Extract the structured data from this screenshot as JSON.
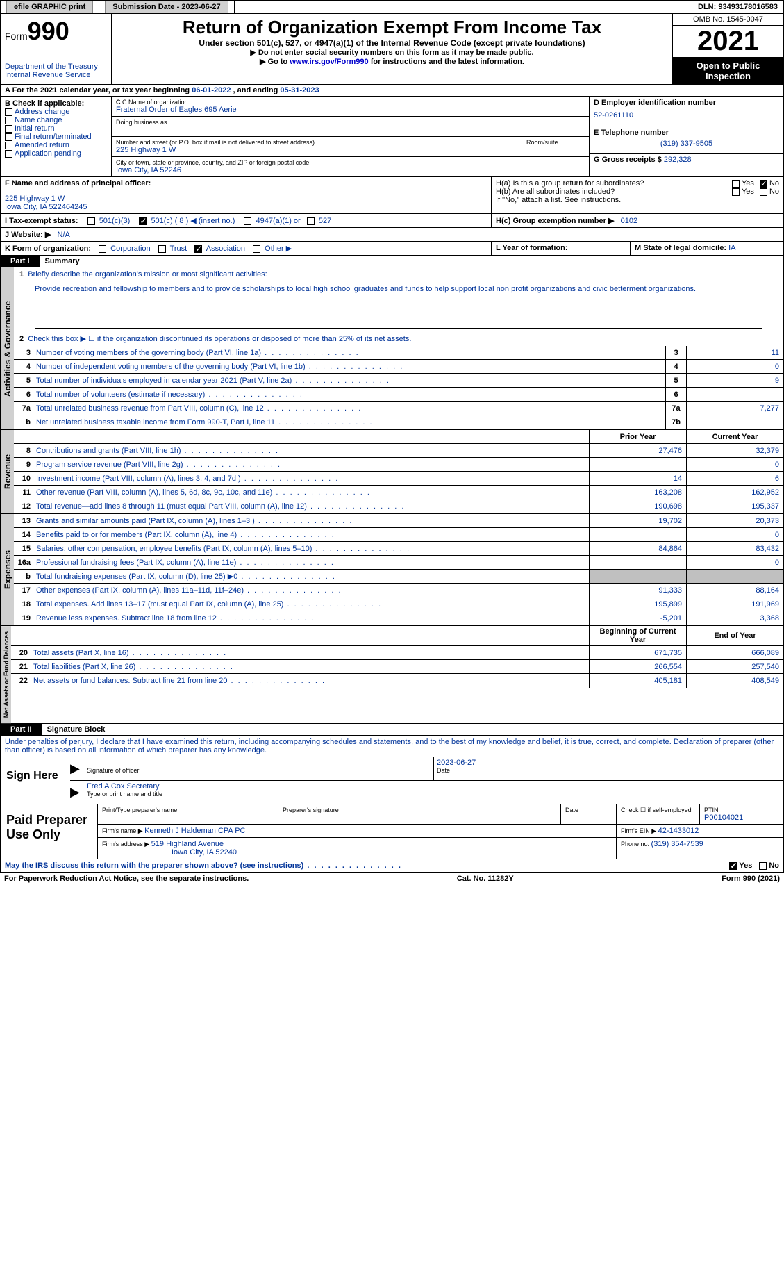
{
  "topbar": {
    "efile": "efile GRAPHIC print",
    "subdate_label": "Submission Date - ",
    "subdate": "2023-06-27",
    "dln_label": "DLN: ",
    "dln": "93493178016583"
  },
  "header": {
    "form_word": "Form",
    "form_num": "990",
    "dept": "Department of the Treasury",
    "irs": "Internal Revenue Service",
    "title": "Return of Organization Exempt From Income Tax",
    "subtitle": "Under section 501(c), 527, or 4947(a)(1) of the Internal Revenue Code (except private foundations)",
    "instr1": "▶ Do not enter social security numbers on this form as it may be made public.",
    "instr2_pre": "▶ Go to ",
    "instr2_link": "www.irs.gov/Form990",
    "instr2_post": " for instructions and the latest information.",
    "omb": "OMB No. 1545-0047",
    "year": "2021",
    "inspection": "Open to Public Inspection"
  },
  "rowA": {
    "text_pre": "A For the 2021 calendar year, or tax year beginning ",
    "begin": "06-01-2022",
    "mid": "   , and ending ",
    "end": "05-31-2023"
  },
  "boxB": {
    "label": "B Check if applicable:",
    "opts": [
      "Address change",
      "Name change",
      "Initial return",
      "Final return/terminated",
      "Amended return",
      "Application pending"
    ]
  },
  "boxC": {
    "name_label": "C Name of organization",
    "name": "Fraternal Order of Eagles 695 Aerie",
    "dba_label": "Doing business as",
    "addr_label": "Number and street (or P.O. box if mail is not delivered to street address)",
    "room_label": "Room/suite",
    "addr": "225 Highway 1 W",
    "city_label": "City or town, state or province, country, and ZIP or foreign postal code",
    "city": "Iowa City, IA  52246"
  },
  "boxD": {
    "label": "D Employer identification number",
    "val": "52-0261110"
  },
  "boxE": {
    "label": "E Telephone number",
    "val": "(319) 337-9505"
  },
  "boxG": {
    "label": "G Gross receipts $ ",
    "val": "292,328"
  },
  "boxF": {
    "label": "F  Name and address of principal officer:",
    "line1": "225 Highway 1 W",
    "line2": "Iowa City, IA  522464245"
  },
  "boxH": {
    "a": "H(a)  Is this a group return for subordinates?",
    "b": "H(b)  Are all subordinates included?",
    "b_note": "If \"No,\" attach a list. See instructions.",
    "c_label": "H(c)  Group exemption number ▶",
    "c_val": "0102",
    "yes": "Yes",
    "no": "No"
  },
  "rowI": {
    "label": "I    Tax-exempt status:",
    "o1": "501(c)(3)",
    "o2": "501(c) ( 8 ) ◀ (insert no.)",
    "o3": "4947(a)(1) or",
    "o4": "527"
  },
  "rowJ": {
    "label": "J    Website: ▶",
    "val": "N/A"
  },
  "rowK": {
    "label": "K Form of organization:",
    "o1": "Corporation",
    "o2": "Trust",
    "o3": "Association",
    "o4": "Other ▶"
  },
  "rowL": {
    "label": "L Year of formation:"
  },
  "rowM": {
    "label": "M State of legal domicile: ",
    "val": "IA"
  },
  "part1": {
    "hdr": "Part I",
    "title": "Summary",
    "q1": "Briefly describe the organization's mission or most significant activities:",
    "mission": "Provide recreation and fellowship to members and to provide scholarships to local high school graduates and funds to help support local non profit organizations and civic betterment organizations.",
    "q2": "Check this box ▶ ☐  if the organization discontinued its operations or disposed of more than 25% of its net assets.",
    "vtab_ag": "Activities & Governance",
    "vtab_rev": "Revenue",
    "vtab_exp": "Expenses",
    "vtab_na": "Net Assets or Fund Balances",
    "lines_ag": [
      {
        "n": "3",
        "t": "Number of voting members of the governing body (Part VI, line 1a)",
        "b": "3",
        "v": "11"
      },
      {
        "n": "4",
        "t": "Number of independent voting members of the governing body (Part VI, line 1b)",
        "b": "4",
        "v": "0"
      },
      {
        "n": "5",
        "t": "Total number of individuals employed in calendar year 2021 (Part V, line 2a)",
        "b": "5",
        "v": "9"
      },
      {
        "n": "6",
        "t": "Total number of volunteers (estimate if necessary)",
        "b": "6",
        "v": ""
      },
      {
        "n": "7a",
        "t": "Total unrelated business revenue from Part VIII, column (C), line 12",
        "b": "7a",
        "v": "7,277"
      },
      {
        "n": "b",
        "t": "Net unrelated business taxable income from Form 990-T, Part I, line 11",
        "b": "7b",
        "v": ""
      }
    ],
    "col_prior": "Prior Year",
    "col_current": "Current Year",
    "lines_rev": [
      {
        "n": "8",
        "t": "Contributions and grants (Part VIII, line 1h)",
        "p": "27,476",
        "c": "32,379"
      },
      {
        "n": "9",
        "t": "Program service revenue (Part VIII, line 2g)",
        "p": "",
        "c": "0"
      },
      {
        "n": "10",
        "t": "Investment income (Part VIII, column (A), lines 3, 4, and 7d )",
        "p": "14",
        "c": "6"
      },
      {
        "n": "11",
        "t": "Other revenue (Part VIII, column (A), lines 5, 6d, 8c, 9c, 10c, and 11e)",
        "p": "163,208",
        "c": "162,952"
      },
      {
        "n": "12",
        "t": "Total revenue—add lines 8 through 11 (must equal Part VIII, column (A), line 12)",
        "p": "190,698",
        "c": "195,337"
      }
    ],
    "lines_exp": [
      {
        "n": "13",
        "t": "Grants and similar amounts paid (Part IX, column (A), lines 1–3 )",
        "p": "19,702",
        "c": "20,373"
      },
      {
        "n": "14",
        "t": "Benefits paid to or for members (Part IX, column (A), line 4)",
        "p": "",
        "c": "0"
      },
      {
        "n": "15",
        "t": "Salaries, other compensation, employee benefits (Part IX, column (A), lines 5–10)",
        "p": "84,864",
        "c": "83,432"
      },
      {
        "n": "16a",
        "t": "Professional fundraising fees (Part IX, column (A), line 11e)",
        "p": "",
        "c": "0"
      },
      {
        "n": "b",
        "t": "Total fundraising expenses (Part IX, column (D), line 25) ▶0",
        "p": "SHADE",
        "c": "SHADE"
      },
      {
        "n": "17",
        "t": "Other expenses (Part IX, column (A), lines 11a–11d, 11f–24e)",
        "p": "91,333",
        "c": "88,164"
      },
      {
        "n": "18",
        "t": "Total expenses. Add lines 13–17 (must equal Part IX, column (A), line 25)",
        "p": "195,899",
        "c": "191,969"
      },
      {
        "n": "19",
        "t": "Revenue less expenses. Subtract line 18 from line 12",
        "p": "-5,201",
        "c": "3,368"
      }
    ],
    "col_begin": "Beginning of Current Year",
    "col_end": "End of Year",
    "lines_na": [
      {
        "n": "20",
        "t": "Total assets (Part X, line 16)",
        "p": "671,735",
        "c": "666,089"
      },
      {
        "n": "21",
        "t": "Total liabilities (Part X, line 26)",
        "p": "266,554",
        "c": "257,540"
      },
      {
        "n": "22",
        "t": "Net assets or fund balances. Subtract line 21 from line 20",
        "p": "405,181",
        "c": "408,549"
      }
    ]
  },
  "part2": {
    "hdr": "Part II",
    "title": "Signature Block",
    "declaration": "Under penalties of perjury, I declare that I have examined this return, including accompanying schedules and statements, and to the best of my knowledge and belief, it is true, correct, and complete. Declaration of preparer (other than officer) is based on all information of which preparer has any knowledge.",
    "sign_here": "Sign Here",
    "sig_officer": "Signature of officer",
    "sig_date": "2023-06-27",
    "date_label": "Date",
    "officer_name": "Fred A Cox  Secretary",
    "officer_label": "Type or print name and title",
    "paid": "Paid Preparer Use Only",
    "p_name_label": "Print/Type preparer's name",
    "p_sig_label": "Preparer's signature",
    "p_date_label": "Date",
    "p_check": "Check ☐ if self-employed",
    "ptin_label": "PTIN",
    "ptin": "P00104021",
    "firm_name_label": "Firm's name    ▶ ",
    "firm_name": "Kenneth J Haldeman CPA PC",
    "firm_ein_label": "Firm's EIN ▶ ",
    "firm_ein": "42-1433012",
    "firm_addr_label": "Firm's address ▶ ",
    "firm_addr1": "519 Highland Avenue",
    "firm_addr2": "Iowa City, IA  52240",
    "phone_label": "Phone no. ",
    "phone": "(319) 354-7539",
    "discuss": "May the IRS discuss this return with the preparer shown above? (see instructions)",
    "yes": "Yes",
    "no": "No"
  },
  "footer": {
    "pra": "For Paperwork Reduction Act Notice, see the separate instructions.",
    "cat": "Cat. No. 11282Y",
    "form": "Form 990 (2021)"
  }
}
